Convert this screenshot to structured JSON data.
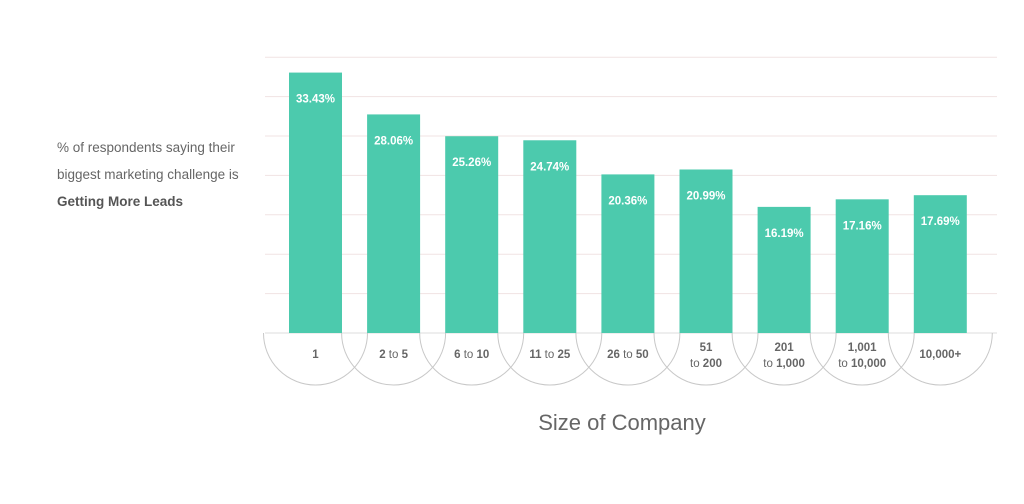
{
  "caption": {
    "line1": "% of respondents saying their",
    "line2": "biggest marketing challenge is",
    "line3": "Getting More Leads"
  },
  "colors": {
    "bar": "#4ccaad",
    "bar_label": "#ffffff",
    "grid": "#f1e3e3",
    "tick_text": "#666666",
    "arc": "#c8c8c8"
  },
  "chart_data": {
    "type": "bar",
    "title": "",
    "xlabel": "Size of Company",
    "ylabel": "",
    "ylim": [
      0,
      35
    ],
    "grid": true,
    "categories": [
      "1",
      "2 to 5",
      "6 to 10",
      "11 to 25",
      "26 to 50",
      "51 to 200",
      "201 to 1,000",
      "1,001 to 10,000",
      "10,000+"
    ],
    "category_labels": [
      [
        {
          "t": "1",
          "b": true
        }
      ],
      [
        {
          "t": "2",
          "b": true
        },
        {
          "t": " to ",
          "b": false
        },
        {
          "t": "5",
          "b": true
        }
      ],
      [
        {
          "t": "6",
          "b": true
        },
        {
          "t": " to ",
          "b": false
        },
        {
          "t": "10",
          "b": true
        }
      ],
      [
        {
          "t": "11",
          "b": true
        },
        {
          "t": " to ",
          "b": false
        },
        {
          "t": "25",
          "b": true
        }
      ],
      [
        {
          "t": "26",
          "b": true
        },
        {
          "t": " to ",
          "b": false
        },
        {
          "t": "50",
          "b": true
        }
      ],
      [
        {
          "t": "51",
          "b": true
        },
        {
          "t": "\n",
          "b": false
        },
        {
          "t": "to ",
          "b": false
        },
        {
          "t": "200",
          "b": true
        }
      ],
      [
        {
          "t": "201",
          "b": true
        },
        {
          "t": "\n",
          "b": false
        },
        {
          "t": "to ",
          "b": false
        },
        {
          "t": "1,000",
          "b": true
        }
      ],
      [
        {
          "t": "1,001",
          "b": true
        },
        {
          "t": "\n",
          "b": false
        },
        {
          "t": "to ",
          "b": false
        },
        {
          "t": "10,000",
          "b": true
        }
      ],
      [
        {
          "t": "10,000+",
          "b": true
        }
      ]
    ],
    "values": [
      33.43,
      28.06,
      25.26,
      24.74,
      20.36,
      20.99,
      16.19,
      17.16,
      17.69
    ],
    "value_labels": [
      "33.43%",
      "28.06%",
      "25.26%",
      "24.74%",
      "20.36%",
      "20.99%",
      "16.19%",
      "17.16%",
      "17.69%"
    ]
  }
}
